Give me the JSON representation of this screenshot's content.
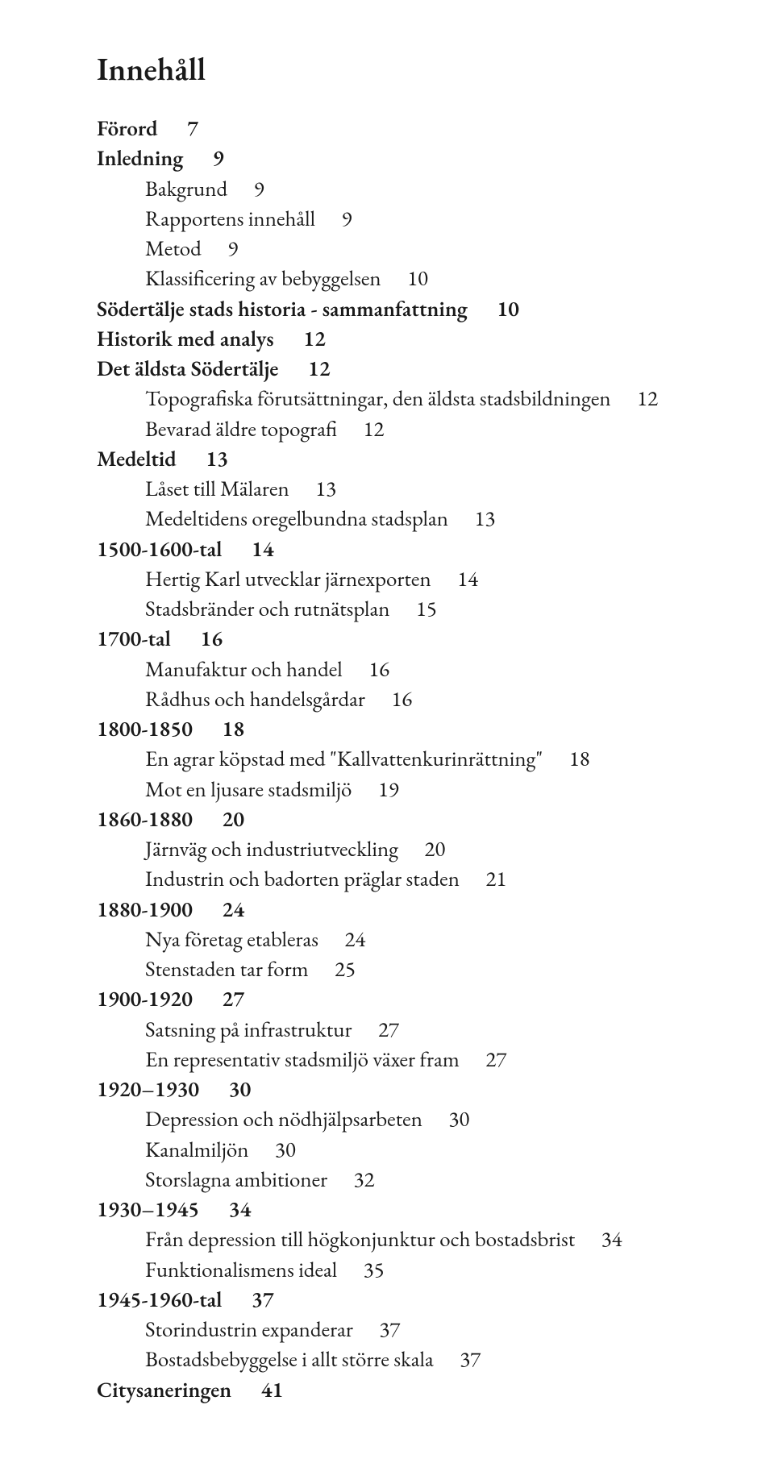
{
  "title": "Innehåll",
  "entries": [
    {
      "level": 0,
      "label": "Förord",
      "page": "7"
    },
    {
      "level": 0,
      "label": "Inledning",
      "page": "9"
    },
    {
      "level": 1,
      "label": "Bakgrund",
      "page": "9"
    },
    {
      "level": 1,
      "label": "Rapportens innehåll",
      "page": "9"
    },
    {
      "level": 1,
      "label": "Metod",
      "page": "9"
    },
    {
      "level": 1,
      "label": "Klassificering av bebyggelsen",
      "page": "10"
    },
    {
      "level": 0,
      "label": "Södertälje stads historia - sammanfattning",
      "page": "10"
    },
    {
      "level": 0,
      "label": "Historik med analys",
      "page": "12"
    },
    {
      "level": 0,
      "label": "Det äldsta Södertälje",
      "page": "12"
    },
    {
      "level": 1,
      "label": "Topografiska förutsättningar, den äldsta stadsbildningen",
      "page": "12"
    },
    {
      "level": 1,
      "label": "Bevarad äldre topografi",
      "page": "12"
    },
    {
      "level": 0,
      "label": "Medeltid",
      "page": "13"
    },
    {
      "level": 1,
      "label": "Låset till Mälaren",
      "page": "13"
    },
    {
      "level": 1,
      "label": "Medeltidens oregelbundna stadsplan",
      "page": "13"
    },
    {
      "level": 0,
      "label": "1500-1600-tal",
      "page": "14"
    },
    {
      "level": 1,
      "label": "Hertig Karl utvecklar järnexporten",
      "page": "14"
    },
    {
      "level": 1,
      "label": "Stadsbränder och rutnätsplan",
      "page": "15"
    },
    {
      "level": 0,
      "label": "1700-tal",
      "page": "16"
    },
    {
      "level": 1,
      "label": "Manufaktur och handel",
      "page": "16"
    },
    {
      "level": 1,
      "label": "Rådhus och handelsgårdar",
      "page": "16"
    },
    {
      "level": 0,
      "label": "1800-1850",
      "page": "18"
    },
    {
      "level": 1,
      "label": "En agrar köpstad med \"Kallvattenkurinrättning\"",
      "page": "18"
    },
    {
      "level": 1,
      "label": "Mot en ljusare stadsmiljö",
      "page": "19"
    },
    {
      "level": 0,
      "label": "1860-1880",
      "page": "20"
    },
    {
      "level": 1,
      "label": "Järnväg och industriutveckling",
      "page": "20"
    },
    {
      "level": 1,
      "label": "Industrin och badorten präglar staden",
      "page": "21"
    },
    {
      "level": 0,
      "label": "1880-1900",
      "page": "24"
    },
    {
      "level": 1,
      "label": "Nya företag etableras",
      "page": "24"
    },
    {
      "level": 1,
      "label": "Stenstaden tar form",
      "page": "25"
    },
    {
      "level": 0,
      "label": "1900-1920",
      "page": "27"
    },
    {
      "level": 1,
      "label": "Satsning på infrastruktur",
      "page": "27"
    },
    {
      "level": 1,
      "label": "En representativ stadsmiljö växer fram",
      "page": "27"
    },
    {
      "level": 0,
      "label": "1920–1930",
      "page": "30"
    },
    {
      "level": 1,
      "label": "Depression och nödhjälpsarbeten",
      "page": "30"
    },
    {
      "level": 1,
      "label": "Kanalmiljön",
      "page": "30"
    },
    {
      "level": 1,
      "label": "Storslagna ambitioner",
      "page": "32"
    },
    {
      "level": 0,
      "label": "1930–1945",
      "page": "34"
    },
    {
      "level": 1,
      "label": "Från depression till högkonjunktur och bostadsbrist",
      "page": "34"
    },
    {
      "level": 1,
      "label": "Funktionalismens ideal",
      "page": "35"
    },
    {
      "level": 0,
      "label": "1945-1960-tal",
      "page": "37"
    },
    {
      "level": 1,
      "label": "Storindustrin expanderar",
      "page": "37"
    },
    {
      "level": 1,
      "label": "Bostadsbebyggelse i allt större skala",
      "page": "37"
    },
    {
      "level": 0,
      "label": "Citysaneringen",
      "page": "41"
    }
  ],
  "gap_spaces": "      "
}
